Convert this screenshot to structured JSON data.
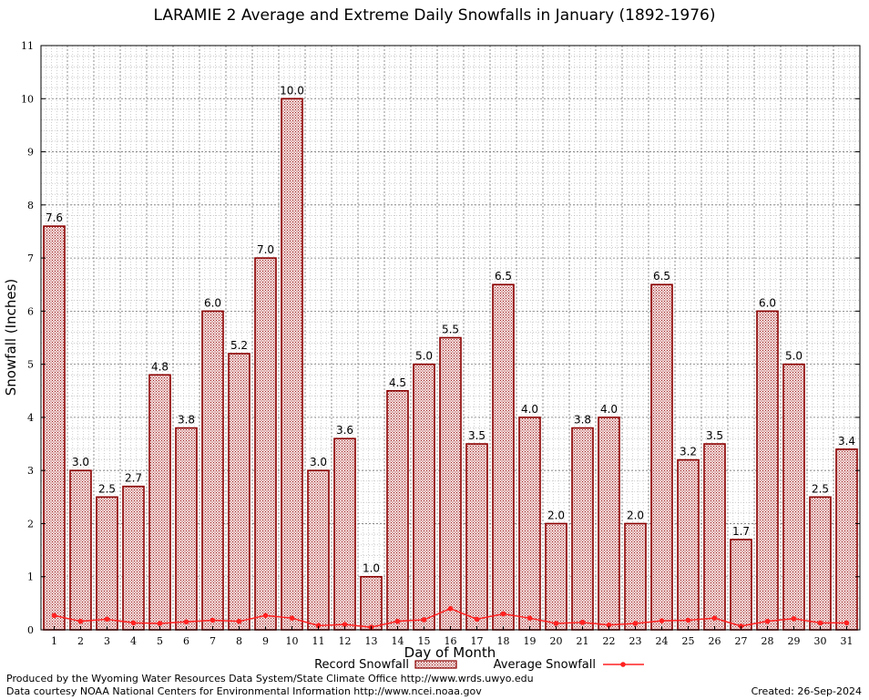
{
  "chart_data": {
    "type": "bar",
    "title": "LARAMIE 2 Average and Extreme Daily Snowfalls in January (1892-1976)",
    "xlabel": "Day of Month",
    "ylabel": "Snowfall (Inches)",
    "ylim": [
      0,
      11
    ],
    "yticks": [
      "0",
      "1",
      "2",
      "3",
      "4",
      "5",
      "6",
      "7",
      "8",
      "9",
      "10",
      "11"
    ],
    "categories": [
      "1",
      "2",
      "3",
      "4",
      "5",
      "6",
      "7",
      "8",
      "9",
      "10",
      "11",
      "12",
      "13",
      "14",
      "15",
      "16",
      "17",
      "18",
      "19",
      "20",
      "21",
      "22",
      "23",
      "24",
      "25",
      "26",
      "27",
      "28",
      "29",
      "30",
      "31"
    ],
    "series": [
      {
        "name": "Record Snowfall",
        "type": "bar",
        "values": [
          7.6,
          3.0,
          2.5,
          2.7,
          4.8,
          3.8,
          6.0,
          5.2,
          7.0,
          10.0,
          3.0,
          3.6,
          1.0,
          4.5,
          5.0,
          5.5,
          3.5,
          6.5,
          4.0,
          2.0,
          3.8,
          4.0,
          2.0,
          6.5,
          3.2,
          3.5,
          1.7,
          6.0,
          5.0,
          2.5,
          3.4
        ],
        "labels": [
          "7.6",
          "3.0",
          "2.5",
          "2.7",
          "4.8",
          "3.8",
          "6.0",
          "5.2",
          "7.0",
          "10.0",
          "3.0",
          "3.6",
          "1.0",
          "4.5",
          "5.0",
          "5.5",
          "3.5",
          "6.5",
          "4.0",
          "2.0",
          "3.8",
          "4.0",
          "2.0",
          "6.5",
          "3.2",
          "3.5",
          "1.7",
          "6.0",
          "5.0",
          "2.5",
          "3.4"
        ]
      },
      {
        "name": "Average Snowfall",
        "type": "line",
        "values": [
          0.27,
          0.16,
          0.2,
          0.13,
          0.12,
          0.15,
          0.18,
          0.16,
          0.27,
          0.22,
          0.08,
          0.1,
          0.05,
          0.16,
          0.19,
          0.4,
          0.2,
          0.3,
          0.22,
          0.12,
          0.14,
          0.09,
          0.12,
          0.17,
          0.18,
          0.22,
          0.07,
          0.16,
          0.21,
          0.13,
          0.13
        ]
      }
    ],
    "grid": true,
    "legend": "bottom",
    "colors": {
      "bar_edge": "#8b0000",
      "bar_fill": "#d88080",
      "line": "#ff2020",
      "grid": "#888888"
    }
  },
  "footer": {
    "produced_by": "Produced by the Wyoming Water Resources Data System/State Climate Office http://www.wrds.uwyo.edu",
    "courtesy": "Data courtesy NOAA National Centers for Environmental Information http://www.ncei.noaa.gov",
    "created": "Created:  26-Sep-2024"
  }
}
